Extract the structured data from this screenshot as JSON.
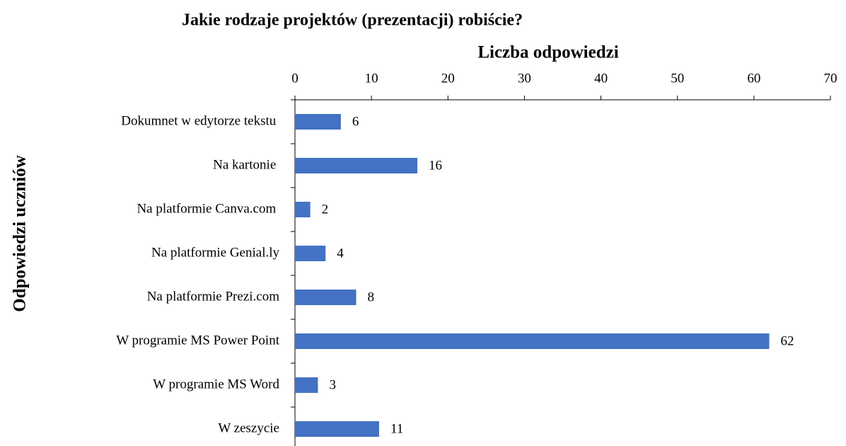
{
  "chart_data": {
    "type": "bar",
    "orientation": "horizontal",
    "title": "Jakie rodzaje projektów (prezentacji) robiście?",
    "x_label": "Liczba odpowiedzi",
    "y_label": "Odpowiedzi uczniów",
    "categories": [
      "Dokumnet w edytorze tekstu ",
      "Na kartonie ",
      "Na platformie Canva.com ",
      "Na platformie Genial.ly",
      "Na platformie Prezi.com",
      "W programie MS Power Point",
      "W programie MS Word",
      "W zeszycie"
    ],
    "values": [
      6,
      16,
      2,
      4,
      8,
      62,
      3,
      11
    ],
    "color": "#4472c4",
    "xlim": [
      0,
      70
    ],
    "xticks": [
      0,
      10,
      20,
      30,
      40,
      50,
      60,
      70
    ],
    "grid": false
  }
}
